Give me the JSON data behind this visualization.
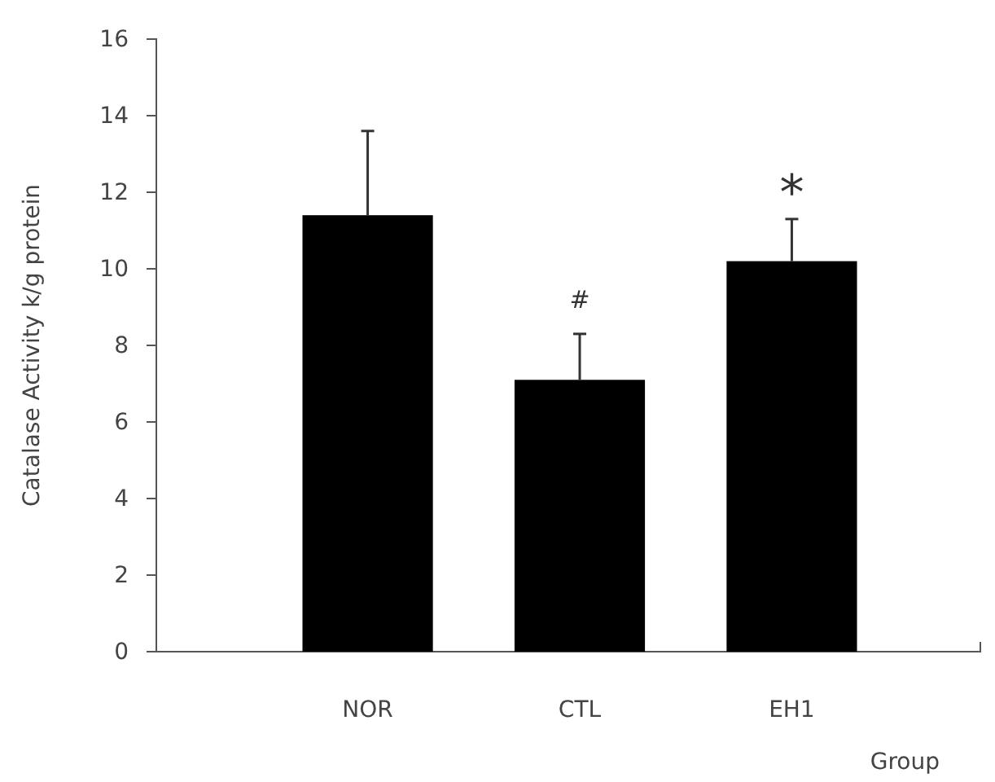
{
  "chart_data": {
    "type": "bar",
    "xlabel": "Group",
    "ylabel": "Catalase Activity k/g protein",
    "categories": [
      "NOR",
      "CTL",
      "EH1"
    ],
    "values": [
      11.4,
      7.1,
      10.2
    ],
    "color": "#000000",
    "errors": [
      [
        11.4,
        13.6
      ],
      [
        7.1,
        8.3
      ],
      [
        10.2,
        11.3
      ]
    ],
    "ylim": [
      0,
      16
    ],
    "yticks": [
      0,
      2,
      4,
      6,
      8,
      10,
      12,
      14,
      16
    ],
    "grid": false,
    "annotations": [
      "#",
      "*"
    ]
  }
}
